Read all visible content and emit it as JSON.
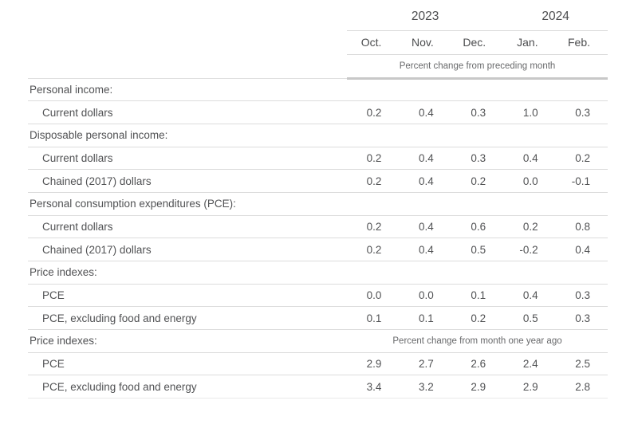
{
  "colors": {
    "text": "#515254",
    "note_text": "#68696b",
    "divider": "#dcdcdc",
    "strong_divider": "#c8c8c8",
    "background": "#ffffff"
  },
  "table": {
    "year_groups": [
      {
        "label": "2023"
      },
      {
        "label": "2024"
      }
    ],
    "months": [
      "Oct.",
      "Nov.",
      "Dec.",
      "Jan.",
      "Feb."
    ],
    "note_preceding_month": "Percent change from preceding month",
    "note_year_ago": "Percent change from month one year ago",
    "rows": [
      {
        "label": "Personal income:"
      },
      {
        "label": "Current dollars",
        "values": [
          "0.2",
          "0.4",
          "0.3",
          "1.0",
          "0.3"
        ]
      },
      {
        "label": "Disposable personal income:"
      },
      {
        "label": "Current dollars",
        "values": [
          "0.2",
          "0.4",
          "0.3",
          "0.4",
          "0.2"
        ]
      },
      {
        "label": "Chained (2017) dollars",
        "values": [
          "0.2",
          "0.4",
          "0.2",
          "0.0",
          "-0.1"
        ]
      },
      {
        "label": "Personal consumption expenditures (PCE):"
      },
      {
        "label": "Current dollars",
        "values": [
          "0.2",
          "0.4",
          "0.6",
          "0.2",
          "0.8"
        ]
      },
      {
        "label": "Chained (2017) dollars",
        "values": [
          "0.2",
          "0.4",
          "0.5",
          "-0.2",
          "0.4"
        ]
      },
      {
        "label": "Price indexes:"
      },
      {
        "label": "PCE",
        "values": [
          "0.0",
          "0.0",
          "0.1",
          "0.4",
          "0.3"
        ]
      },
      {
        "label": "PCE, excluding food and energy",
        "values": [
          "0.1",
          "0.1",
          "0.2",
          "0.5",
          "0.3"
        ]
      },
      {
        "label": "Price indexes:"
      },
      {
        "label": "PCE",
        "values": [
          "2.9",
          "2.7",
          "2.6",
          "2.4",
          "2.5"
        ]
      },
      {
        "label": "PCE, excluding food and energy",
        "values": [
          "3.4",
          "3.2",
          "2.9",
          "2.9",
          "2.8"
        ]
      }
    ]
  }
}
